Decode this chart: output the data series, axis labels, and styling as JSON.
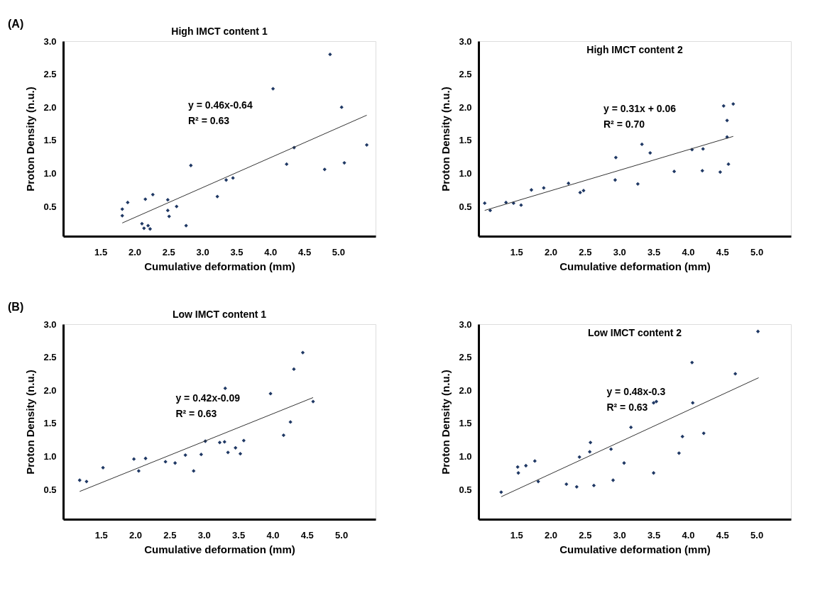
{
  "chart_data": [
    {
      "type": "scatter",
      "title": "High IMCT content 1",
      "xlabel": "Cumulative deformation (mm)",
      "ylabel": "Proton Density  (n.u.)",
      "grid": false,
      "annotations": [
        "(A)",
        "y = 0.46x-0.64",
        "R² = 0.63"
      ],
      "xlim": [
        0.95,
        5.55
      ],
      "xticks": [
        1.5,
        {
          "value": 2,
          "label": "2.0"
        },
        2.5,
        {
          "value": 3,
          "label": "3.0"
        },
        3.5,
        {
          "value": 4,
          "label": "4.0"
        },
        4.5,
        {
          "value": 5,
          "label": "5.0"
        }
      ],
      "ylim": [
        0.05,
        3.0
      ],
      "yticks": [
        0.5,
        {
          "value": 1,
          "label": "1.0"
        },
        1.5,
        {
          "value": 2,
          "label": "2.0"
        },
        2.5,
        {
          "value": 3,
          "label": "3.0"
        }
      ],
      "series": [
        {
          "marker": "diamond",
          "color": "#1f3864",
          "x": [
            1.82,
            1.82,
            1.9,
            2.11,
            2.14,
            2.16,
            2.2,
            2.23,
            2.27,
            2.49,
            2.49,
            2.51,
            2.62,
            2.76,
            2.83,
            3.22,
            3.35,
            3.45,
            4.04,
            4.24,
            4.35,
            4.8,
            4.88,
            5.05,
            5.09,
            5.42
          ],
          "values": [
            0.46,
            0.36,
            0.56,
            0.24,
            0.17,
            0.61,
            0.21,
            0.16,
            0.68,
            0.6,
            0.44,
            0.35,
            0.5,
            0.21,
            1.12,
            0.65,
            0.9,
            0.93,
            2.28,
            1.14,
            1.39,
            1.06,
            2.8,
            2.0,
            1.16,
            1.43
          ]
        },
        {
          "type": "line",
          "marker": "none",
          "color": "#333333",
          "x": [
            1.82,
            5.42
          ],
          "values": [
            0.25,
            1.88
          ]
        }
      ]
    },
    {
      "type": "scatter",
      "title": "High IMCT content 2",
      "xlabel": "Cumulative deformation (mm)",
      "ylabel": "Proton Density (n.u.)",
      "grid": false,
      "annotations": [
        "y = 0.31x + 0.06",
        "R² = 0.70"
      ],
      "xlim": [
        0.95,
        5.5
      ],
      "xticks": [
        1.5,
        {
          "value": 2,
          "label": "2.0"
        },
        2.5,
        {
          "value": 3,
          "label": "3.0"
        },
        3.5,
        {
          "value": 4,
          "label": "4.0"
        },
        4.5,
        {
          "value": 5,
          "label": "5.0"
        }
      ],
      "ylim": [
        0.05,
        3.0
      ],
      "yticks": [
        0.5,
        {
          "value": 1,
          "label": "1.0"
        },
        1.5,
        {
          "value": 2,
          "label": "2.0"
        },
        2.5,
        {
          "value": 3,
          "label": "3.0"
        }
      ],
      "series": [
        {
          "marker": "diamond",
          "color": "#1f3864",
          "x": [
            1.04,
            1.12,
            1.35,
            1.46,
            1.57,
            1.72,
            1.9,
            2.26,
            2.43,
            2.48,
            2.94,
            2.95,
            3.27,
            3.33,
            3.45,
            3.8,
            4.06,
            4.21,
            4.22,
            4.47,
            4.52,
            4.57,
            4.57,
            4.59,
            4.66
          ],
          "values": [
            0.55,
            0.44,
            0.56,
            0.55,
            0.52,
            0.75,
            0.78,
            0.85,
            0.71,
            0.74,
            0.9,
            1.24,
            0.84,
            1.44,
            1.31,
            1.03,
            1.36,
            1.04,
            1.37,
            1.02,
            2.02,
            1.55,
            1.8,
            1.14,
            2.05
          ]
        },
        {
          "type": "line",
          "marker": "none",
          "color": "#333333",
          "x": [
            1.04,
            4.66
          ],
          "values": [
            0.44,
            1.56
          ]
        }
      ]
    },
    {
      "type": "scatter",
      "title": "Low IMCT content 1",
      "xlabel": "Cumulative deformation (mm)",
      "ylabel": "Proton Density (n.u.)",
      "grid": false,
      "annotations": [
        "(B)",
        "y = 0.42x-0.09",
        "R² = 0.63"
      ],
      "xlim": [
        0.95,
        5.5
      ],
      "xticks": [
        1.5,
        {
          "value": 2,
          "label": "2.0"
        },
        2.5,
        {
          "value": 3,
          "label": "3.0"
        },
        3.5,
        {
          "value": 4,
          "label": "4.0"
        },
        4.5,
        {
          "value": 5,
          "label": "5.0"
        }
      ],
      "ylim": [
        0.05,
        3.0
      ],
      "yticks": [
        0.5,
        {
          "value": 1,
          "label": "1.0"
        },
        1.5,
        {
          "value": 2,
          "label": "2.0"
        },
        2.5,
        {
          "value": 3,
          "label": "3.0"
        }
      ],
      "series": [
        {
          "marker": "diamond",
          "color": "#1f3864",
          "x": [
            1.19,
            1.29,
            1.53,
            1.98,
            2.05,
            2.15,
            2.44,
            2.58,
            2.73,
            2.85,
            2.96,
            3.02,
            3.23,
            3.3,
            3.31,
            3.35,
            3.46,
            3.53,
            3.58,
            3.97,
            4.16,
            4.26,
            4.31,
            4.44,
            4.59
          ],
          "values": [
            0.64,
            0.62,
            0.83,
            0.96,
            0.78,
            0.97,
            0.92,
            0.9,
            1.02,
            0.78,
            1.03,
            1.23,
            1.21,
            1.22,
            2.03,
            1.06,
            1.13,
            1.04,
            1.24,
            1.95,
            1.32,
            1.52,
            2.32,
            2.57,
            1.83
          ]
        },
        {
          "type": "line",
          "marker": "none",
          "color": "#333333",
          "x": [
            1.19,
            4.59
          ],
          "values": [
            0.47,
            1.89
          ]
        }
      ]
    },
    {
      "type": "scatter",
      "title": "Low IMCT content 2",
      "xlabel": "Cumulative deformation (mm)",
      "ylabel": "Proton Density (n.u.)",
      "grid": false,
      "annotations": [
        "y = 0.48x-0.3",
        "R² = 0.63"
      ],
      "xlim": [
        0.95,
        5.5
      ],
      "xticks": [
        1.5,
        {
          "value": 2,
          "label": "2.0"
        },
        2.5,
        {
          "value": 3,
          "label": "3.0"
        },
        3.5,
        {
          "value": 4,
          "label": "4.0"
        },
        4.5,
        {
          "value": 5,
          "label": "5.0"
        }
      ],
      "ylim": [
        0.05,
        3.0
      ],
      "yticks": [
        0.5,
        {
          "value": 1,
          "label": "1.0"
        },
        1.5,
        {
          "value": 2,
          "label": "2.0"
        },
        2.5,
        {
          "value": 3,
          "label": "3.0"
        }
      ],
      "series": [
        {
          "marker": "diamond",
          "color": "#1f3864",
          "x": [
            1.28,
            1.52,
            1.53,
            1.64,
            1.77,
            1.82,
            2.23,
            2.38,
            2.42,
            2.57,
            2.58,
            2.63,
            2.88,
            2.91,
            3.07,
            3.17,
            3.5,
            3.5,
            3.54,
            3.87,
            3.92,
            4.06,
            4.07,
            4.23,
            4.69,
            5.02
          ],
          "values": [
            0.46,
            0.84,
            0.75,
            0.86,
            0.93,
            0.62,
            0.58,
            0.54,
            0.99,
            1.07,
            1.21,
            0.56,
            1.11,
            0.64,
            0.9,
            1.44,
            0.75,
            1.81,
            1.83,
            1.05,
            1.3,
            2.42,
            1.81,
            1.35,
            2.25,
            2.89
          ]
        },
        {
          "type": "line",
          "marker": "none",
          "color": "#333333",
          "x": [
            1.28,
            5.03
          ],
          "values": [
            0.39,
            2.19
          ]
        }
      ]
    }
  ]
}
